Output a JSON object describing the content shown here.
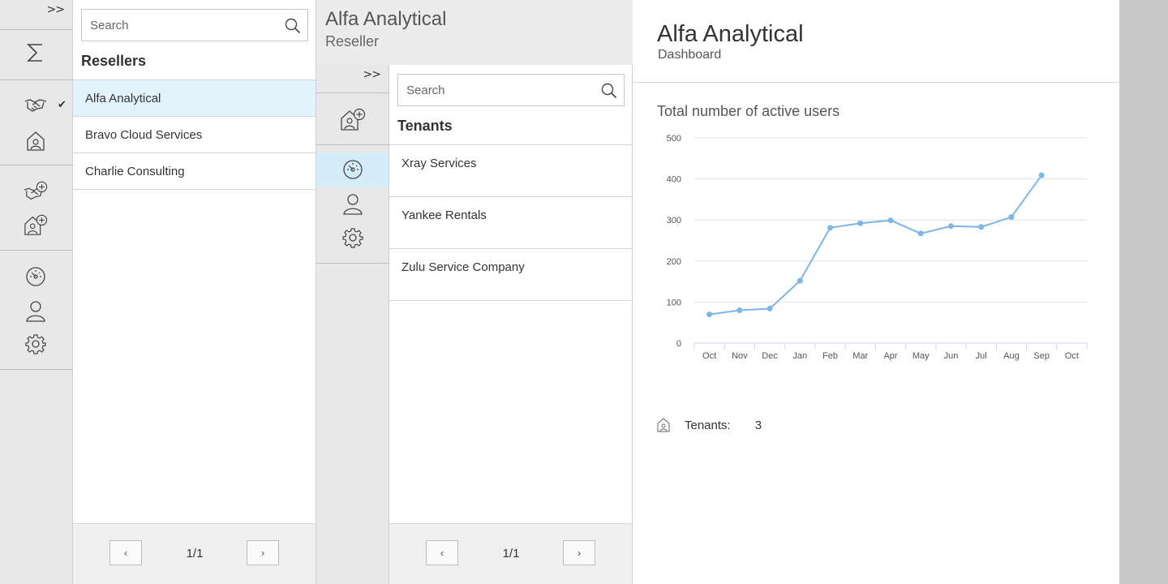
{
  "rail": {
    "expand_label": ">>"
  },
  "resellers": {
    "search_placeholder": "Search",
    "heading": "Resellers",
    "items": [
      {
        "label": "Alfa Analytical"
      },
      {
        "label": "Bravo Cloud Services"
      },
      {
        "label": "Charlie Consulting"
      }
    ],
    "selected_index": 0,
    "pager": {
      "prev": "‹",
      "info": "1/1",
      "next": "›"
    }
  },
  "reseller_detail": {
    "title": "Alfa Analytical",
    "subtitle": "Reseller",
    "expand_label": ">>"
  },
  "tenants": {
    "search_placeholder": "Search",
    "heading": "Tenants",
    "items": [
      {
        "label": "Xray Services"
      },
      {
        "label": "Yankee Rentals"
      },
      {
        "label": "Zulu Service Company"
      }
    ],
    "pager": {
      "prev": "‹",
      "info": "1/1",
      "next": "›"
    }
  },
  "dashboard": {
    "title": "Alfa Analytical",
    "subtitle": "Dashboard",
    "chart_title": "Total number of active users",
    "tenants_label": "Tenants:",
    "tenants_value": "3"
  },
  "colors": {
    "accent_line": "#7cb5e6",
    "selected_row": "#e3f3fc",
    "active_icon_bg": "#d5ecf9"
  },
  "chart_data": {
    "type": "line",
    "title": "Total number of active users",
    "categories": [
      "Oct",
      "Nov",
      "Dec",
      "Jan",
      "Feb",
      "Mar",
      "Apr",
      "May",
      "Jun",
      "Jul",
      "Aug",
      "Sep",
      "Oct"
    ],
    "series": [
      {
        "values": [
          70,
          80,
          84,
          152,
          281,
          292,
          299,
          267,
          285,
          283,
          307,
          409,
          null
        ]
      }
    ],
    "yticks": [
      0,
      100,
      200,
      300,
      400,
      500
    ],
    "ylim": [
      0,
      500
    ],
    "grid": true,
    "legend": "none"
  }
}
